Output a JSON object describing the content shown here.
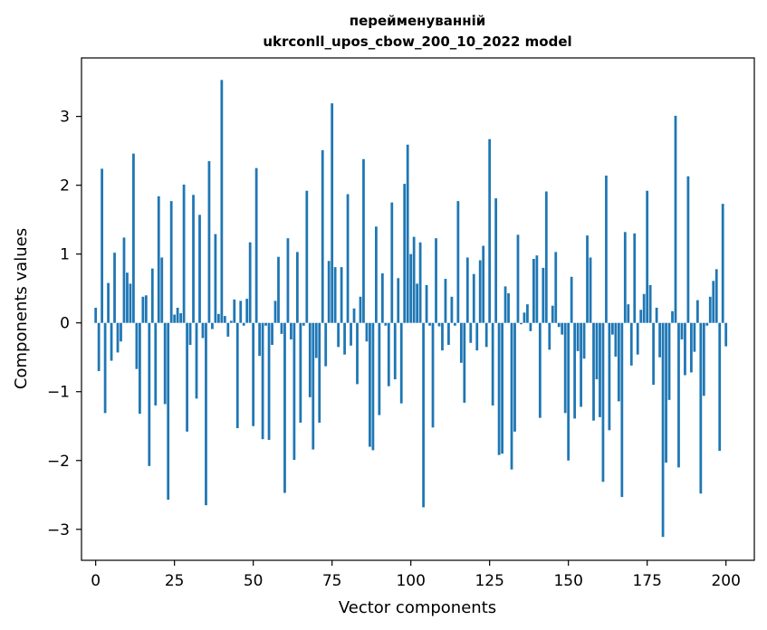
{
  "chart_data": {
    "type": "bar",
    "title_line1": "перейменуванній",
    "title_line2": "ukrconll_upos_cbow_200_10_2022 model",
    "xlabel": "Vector components",
    "ylabel": "Components values",
    "xlim": [
      -4.5,
      209
    ],
    "ylim": [
      -3.45,
      3.85
    ],
    "xticks": [
      0,
      25,
      50,
      75,
      100,
      125,
      150,
      175,
      200
    ],
    "yticks": [
      -3,
      -2,
      -1,
      0,
      1,
      2,
      3
    ],
    "ytick_labels": [
      "−3",
      "−2",
      "−1",
      "0",
      "1",
      "2",
      "3"
    ],
    "bar_color": "#1f77b4",
    "grid": false,
    "values": [
      0.22,
      -0.7,
      2.24,
      -1.31,
      0.58,
      -0.55,
      1.02,
      -0.43,
      -0.27,
      1.24,
      0.73,
      0.57,
      2.46,
      -0.67,
      -1.32,
      0.38,
      0.4,
      -2.08,
      0.79,
      -1.2,
      1.84,
      0.95,
      -1.18,
      -2.57,
      1.77,
      0.12,
      0.22,
      0.14,
      2.01,
      -1.58,
      -0.32,
      1.86,
      -1.1,
      1.57,
      -0.22,
      -2.65,
      2.35,
      -0.09,
      1.29,
      0.13,
      3.53,
      0.1,
      -0.2,
      0.03,
      0.34,
      -1.53,
      0.32,
      -0.04,
      0.35,
      1.17,
      -1.5,
      2.25,
      -0.48,
      -1.69,
      -0.04,
      -1.7,
      -0.32,
      0.32,
      0.96,
      -0.16,
      -2.47,
      1.23,
      -0.24,
      -1.99,
      1.03,
      -1.45,
      -0.04,
      1.92,
      -1.08,
      -1.84,
      -0.51,
      -1.45,
      2.51,
      -0.63,
      0.9,
      3.19,
      0.81,
      -0.35,
      0.81,
      -0.46,
      1.87,
      -0.33,
      0.21,
      -0.89,
      0.38,
      2.38,
      -0.27,
      -1.8,
      -1.85,
      1.4,
      -1.34,
      0.72,
      -0.04,
      -0.92,
      1.75,
      -0.82,
      0.65,
      -1.17,
      2.02,
      2.59,
      1.0,
      1.25,
      0.57,
      1.17,
      -2.68,
      0.55,
      -0.04,
      -1.52,
      1.23,
      -0.05,
      -0.4,
      0.64,
      -0.32,
      0.38,
      -0.04,
      1.77,
      -0.58,
      -1.16,
      0.95,
      -0.29,
      0.71,
      -0.4,
      0.91,
      1.12,
      -0.35,
      2.67,
      -1.2,
      1.81,
      -1.92,
      -1.9,
      0.53,
      0.43,
      -2.13,
      -1.58,
      1.28,
      -0.02,
      0.15,
      0.27,
      -0.12,
      0.93,
      0.98,
      -1.38,
      0.8,
      1.91,
      -0.39,
      0.25,
      1.03,
      -0.06,
      -0.17,
      -1.31,
      -2.0,
      0.67,
      -1.39,
      -0.41,
      -1.22,
      -0.52,
      1.27,
      0.95,
      -1.42,
      -0.82,
      -1.37,
      -2.31,
      2.14,
      -1.56,
      -0.17,
      -0.49,
      -1.14,
      -2.53,
      1.32,
      0.27,
      -0.62,
      1.3,
      -0.46,
      0.19,
      0.42,
      1.92,
      0.55,
      -0.9,
      0.22,
      -0.5,
      -3.11,
      -2.03,
      -1.12,
      0.17,
      3.01,
      -2.1,
      -0.24,
      -0.76,
      2.13,
      -0.72,
      -0.42,
      0.33,
      -2.48,
      -1.06,
      -0.04,
      0.38,
      0.61,
      0.78,
      -1.86,
      1.73,
      -0.34
    ]
  }
}
